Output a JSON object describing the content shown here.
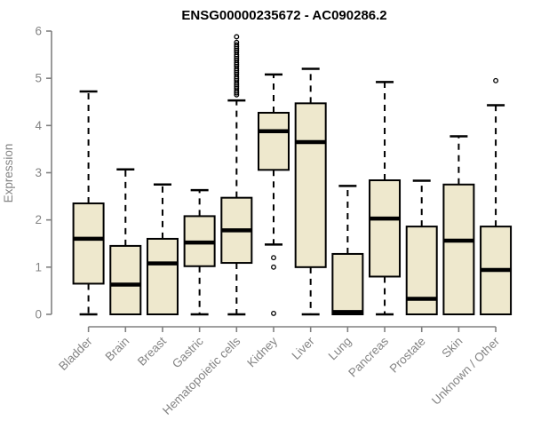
{
  "colors": {
    "box_fill": "#EEE8CD",
    "box_stroke": "#000000",
    "median": "#000000",
    "whisker": "#000000",
    "outlier": "#000000",
    "axis": "#808080",
    "tick_label": "#848484",
    "title": "#000000"
  },
  "chart_data": {
    "type": "boxplot",
    "title": "ENSG00000235672 - AC090286.2",
    "xlabel": "",
    "ylabel": "Expression",
    "ylim": [
      0,
      6
    ],
    "yticks": [
      0,
      1,
      2,
      3,
      4,
      5,
      6
    ],
    "grid": false,
    "legend": false,
    "x_label_rotation_deg": 45,
    "categories": [
      "Bladder",
      "Brain",
      "Breast",
      "Gastric",
      "Hematopoietic cells",
      "Kidney",
      "Liver",
      "Lung",
      "Pancreas",
      "Prostate",
      "Skin",
      "Unknown / Other"
    ],
    "series": [
      {
        "name": "Bladder",
        "low": 0,
        "q1": 0.65,
        "median": 1.6,
        "q3": 2.35,
        "high": 4.72,
        "outliers": []
      },
      {
        "name": "Brain",
        "low": 0,
        "q1": 0,
        "median": 0.63,
        "q3": 1.45,
        "high": 3.07,
        "outliers": []
      },
      {
        "name": "Breast",
        "low": 0,
        "q1": 0,
        "median": 1.08,
        "q3": 1.6,
        "high": 2.75,
        "outliers": []
      },
      {
        "name": "Gastric",
        "low": 0,
        "q1": 1.02,
        "median": 1.52,
        "q3": 2.08,
        "high": 2.63,
        "outliers": []
      },
      {
        "name": "Hematopoietic cells",
        "low": 0,
        "q1": 1.09,
        "median": 1.78,
        "q3": 2.47,
        "high": 4.53,
        "outliers": [
          5.88,
          5.76,
          5.71,
          5.67,
          5.63,
          5.59,
          5.55,
          5.5,
          5.46,
          5.42,
          5.38,
          5.33,
          5.29,
          5.25,
          5.2,
          5.16,
          5.12,
          5.08,
          5.03,
          4.99,
          4.95,
          4.9,
          4.86,
          4.82,
          4.78,
          4.73,
          4.69,
          4.65
        ]
      },
      {
        "name": "Kidney",
        "low": 1.48,
        "q1": 3.06,
        "median": 3.88,
        "q3": 4.27,
        "high": 5.08,
        "outliers": [
          1.2,
          1.0,
          0.02
        ]
      },
      {
        "name": "Liver",
        "low": 0,
        "q1": 1.0,
        "median": 3.65,
        "q3": 4.47,
        "high": 5.2,
        "outliers": []
      },
      {
        "name": "Lung",
        "low": 0,
        "q1": 0,
        "median": 0.05,
        "q3": 1.28,
        "high": 2.72,
        "outliers": []
      },
      {
        "name": "Pancreas",
        "low": 0,
        "q1": 0.8,
        "median": 2.03,
        "q3": 2.84,
        "high": 4.92,
        "outliers": []
      },
      {
        "name": "Prostate",
        "low": 0,
        "q1": 0,
        "median": 0.33,
        "q3": 1.86,
        "high": 2.83,
        "outliers": []
      },
      {
        "name": "Skin",
        "low": 0,
        "q1": 0,
        "median": 1.56,
        "q3": 2.75,
        "high": 3.77,
        "outliers": []
      },
      {
        "name": "Unknown / Other",
        "low": 0,
        "q1": 0,
        "median": 0.94,
        "q3": 1.86,
        "high": 4.43,
        "outliers": [
          4.95
        ]
      }
    ]
  }
}
